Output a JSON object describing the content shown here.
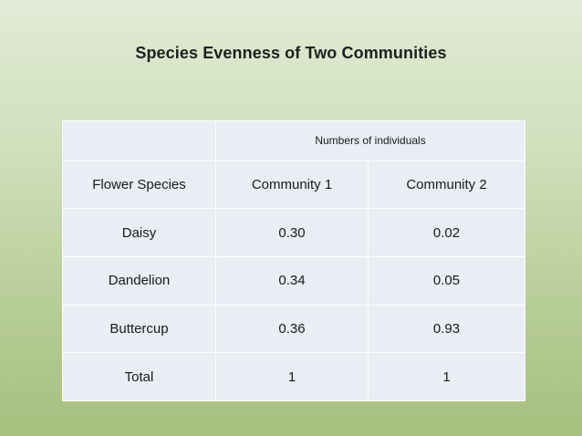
{
  "title": "Species Evenness of Two Communities",
  "table": {
    "group_header": "Numbers of individuals",
    "columns": [
      "Flower Species",
      "Community 1",
      "Community 2"
    ],
    "rows": [
      [
        "Daisy",
        "0.30",
        "0.02"
      ],
      [
        "Dandelion",
        "0.34",
        "0.05"
      ],
      [
        "Buttercup",
        "0.36",
        "0.93"
      ],
      [
        "Total",
        "1",
        "1"
      ]
    ]
  }
}
